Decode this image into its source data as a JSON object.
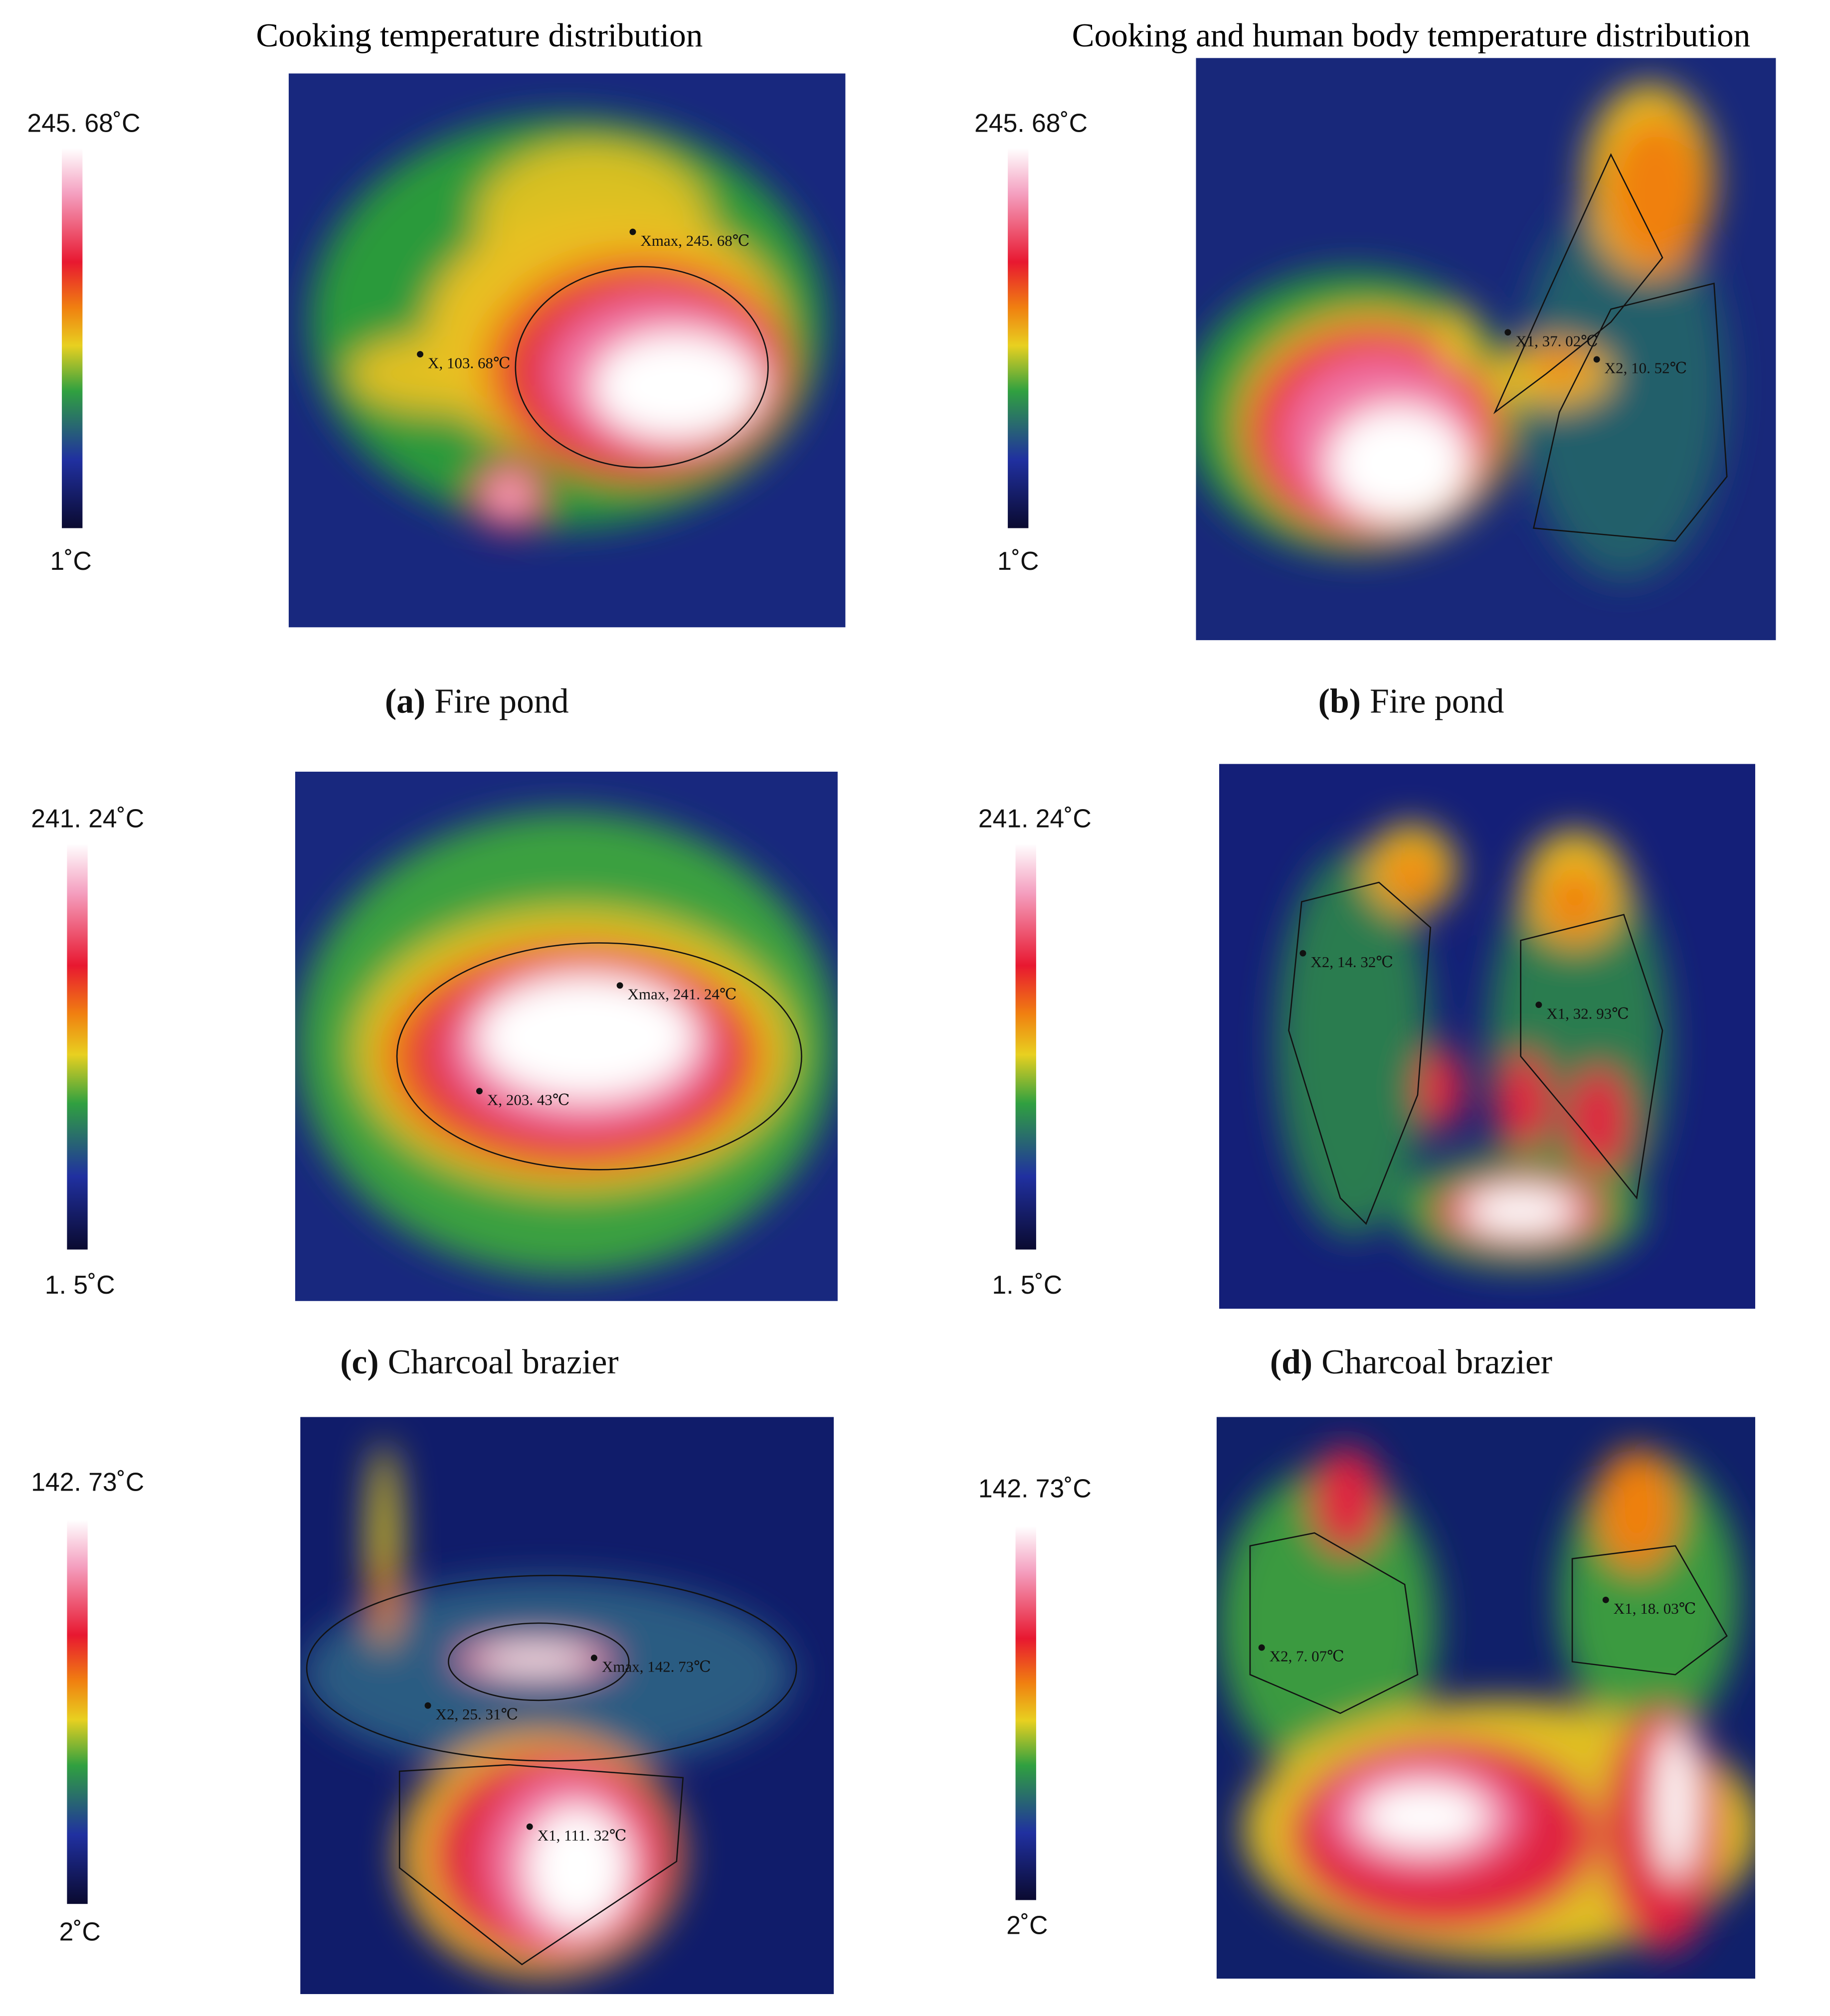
{
  "column_titles": [
    "Cooking temperature distribution",
    "Cooking and human body temperature distribution"
  ],
  "panels": [
    {
      "label": "(a)",
      "caption": "Fire pond",
      "scale_max": "245. 68˚C",
      "scale_min": "1˚C",
      "annotations": [
        "Xmax, 245. 68℃",
        "X, 103. 68℃"
      ]
    },
    {
      "label": "(b)",
      "caption": "Fire pond",
      "scale_max": "245. 68˚C",
      "scale_min": "1˚C",
      "annotations": [
        "X1, 37. 02℃",
        "X2, 10. 52℃"
      ]
    },
    {
      "label": "(c)",
      "caption": "Charcoal brazier",
      "scale_max": "241. 24˚C",
      "scale_min": "1. 5˚C",
      "annotations": [
        "Xmax, 241. 24℃",
        "X, 203. 43℃"
      ]
    },
    {
      "label": "(d)",
      "caption": "Charcoal brazier",
      "scale_max": "241. 24˚C",
      "scale_min": "1. 5˚C",
      "annotations": [
        "X2, 14. 32℃",
        "X1, 32. 93℃"
      ]
    },
    {
      "label": null,
      "caption": null,
      "scale_max": "142. 73˚C",
      "scale_min": "2˚C",
      "annotations": [
        "Xmax, 142. 73℃",
        "X2, 25. 31℃",
        "X1, 111. 32℃"
      ]
    },
    {
      "label": null,
      "caption": null,
      "scale_max": "142. 73˚C",
      "scale_min": "2˚C",
      "annotations": [
        "X2, 7. 07℃",
        "X1, 18. 03℃"
      ]
    }
  ]
}
